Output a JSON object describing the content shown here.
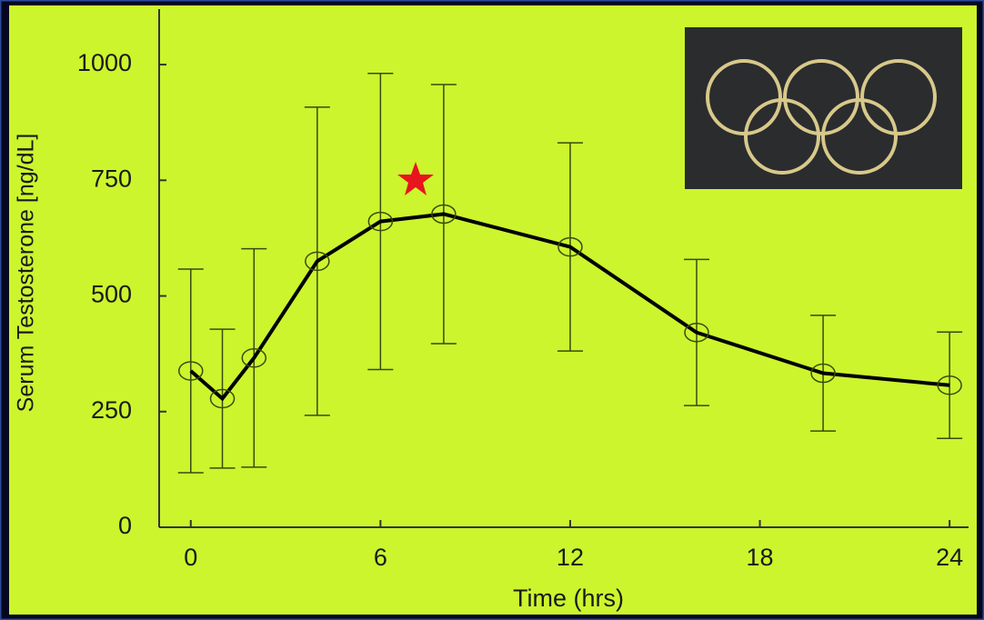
{
  "chart_data": {
    "type": "line",
    "xlabel": "Time (hrs)",
    "ylabel": "Serum Testosterone [ng/dL]",
    "x": [
      0,
      1,
      2,
      4,
      6,
      8,
      12,
      16,
      20,
      24
    ],
    "values": [
      338,
      278,
      366,
      575,
      661,
      677,
      606,
      421,
      333,
      307
    ],
    "errors": [
      220,
      150,
      236,
      333,
      320,
      280,
      225,
      158,
      125,
      115
    ],
    "color": "#000000",
    "xlim": [
      -1,
      24.6
    ],
    "xticks": [
      0,
      6,
      12,
      18,
      24
    ],
    "ylim": [
      0,
      1120
    ],
    "yticks": [
      0,
      250,
      500,
      750,
      1000
    ]
  }
}
